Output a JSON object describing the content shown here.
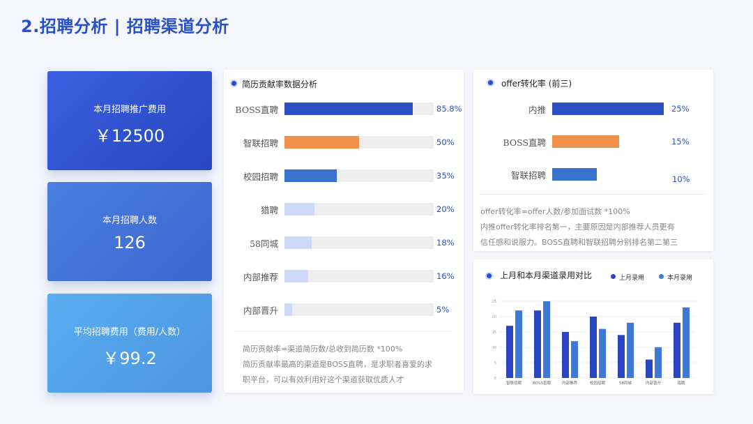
{
  "page": {
    "title": "2.招聘分析 | 招聘渠道分析"
  },
  "kpis": [
    {
      "label": "本月招聘推广费用",
      "value": "￥12500"
    },
    {
      "label": "本月招聘人数",
      "value": "126"
    },
    {
      "label": "平均招聘费用（费用/人数）",
      "value": "￥99.2"
    }
  ],
  "resume_panel": {
    "title": "简历贡献率数据分析",
    "note_lines": [
      "简历贡献率=渠道简历数/总收到简历数 *100%",
      "简历贡献率最高的渠道是BOSS直聘，是求职者喜爱的求",
      "职平台，可以有效利用好这个渠道获取优质人才"
    ]
  },
  "offer_panel": {
    "title": "offer转化率 (前三)",
    "note_lines": [
      "offer转化率=offer人数/参加面试数 *100%",
      "内推offer转化率排名第一，主要原因是内部推荐人员更有",
      "信任感和说服力。BOSS直聘和智联招聘分别排名第二第三"
    ]
  },
  "compare_panel": {
    "title": "上月和本月渠道录用对比"
  },
  "colors": {
    "accent": "#2850c8",
    "bar_blue": "#2c4fc4",
    "bar_orange": "#f0914a",
    "bar_mid": "#3a72d0",
    "bar_light": "#cdd9f7",
    "last_month": "#2846c0",
    "this_month": "#3e78d8"
  },
  "chart_data": [
    {
      "type": "bar",
      "orientation": "horizontal",
      "title": "简历贡献率数据分析",
      "categories": [
        "BOSS直聘",
        "智联招聘",
        "校园招聘",
        "猎聘",
        "58同城",
        "内部推荐",
        "内部晋升"
      ],
      "values": [
        85.8,
        50,
        35,
        20,
        18,
        16,
        5
      ],
      "value_labels": [
        "85.8%",
        "50%",
        "35%",
        "20%",
        "18%",
        "16%",
        "5%"
      ],
      "xlim": [
        0,
        100
      ]
    },
    {
      "type": "bar",
      "orientation": "horizontal",
      "title": "offer转化率 (前三)",
      "categories": [
        "内推",
        "BOSS直聘",
        "智联招聘"
      ],
      "values": [
        25,
        15,
        10
      ],
      "value_labels": [
        "25%",
        "15%",
        "10%"
      ],
      "xlim": [
        0,
        30
      ]
    },
    {
      "type": "bar",
      "title": "上月和本月渠道录用对比",
      "categories": [
        "智联招聘",
        "BOSS直聘",
        "内部推荐",
        "校园招聘",
        "58同城",
        "内部晋升",
        "猎聘"
      ],
      "series": [
        {
          "name": "上月录用",
          "values": [
            17,
            22,
            15,
            20,
            14,
            6,
            18
          ]
        },
        {
          "name": "本月录用",
          "values": [
            22,
            25,
            12,
            16,
            18,
            10,
            23
          ]
        }
      ],
      "ylim": [
        0,
        25
      ],
      "yticks": [
        0,
        5,
        10,
        15,
        20,
        25
      ],
      "legend": "top-right",
      "grid": true
    }
  ]
}
